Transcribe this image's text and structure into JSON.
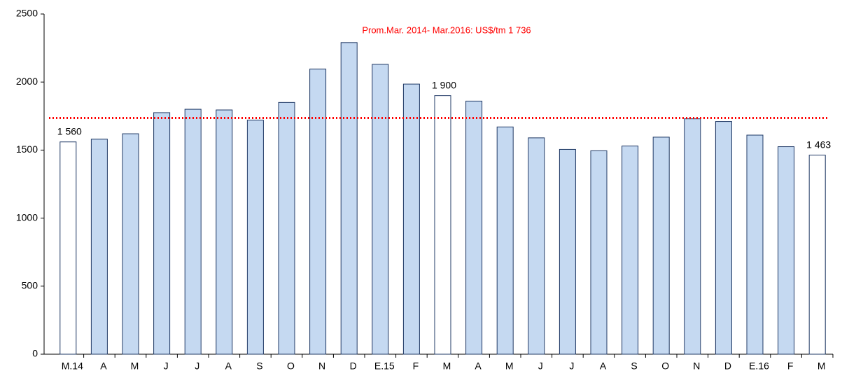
{
  "chart_data": {
    "type": "bar",
    "categories": [
      "M.14",
      "A",
      "M",
      "J",
      "J",
      "A",
      "S",
      "O",
      "N",
      "D",
      "E.15",
      "F",
      "M",
      "A",
      "M",
      "J",
      "J",
      "A",
      "S",
      "O",
      "N",
      "D",
      "E.16",
      "F",
      "M"
    ],
    "values": [
      1560,
      1580,
      1620,
      1775,
      1800,
      1795,
      1720,
      1850,
      2095,
      2290,
      2130,
      1985,
      1900,
      1860,
      1670,
      1590,
      1505,
      1495,
      1530,
      1595,
      1730,
      1710,
      1610,
      1525,
      1463
    ],
    "value_labels": [
      "1 560",
      null,
      null,
      null,
      null,
      null,
      null,
      null,
      null,
      null,
      null,
      null,
      "1 900",
      null,
      null,
      null,
      null,
      null,
      null,
      null,
      null,
      null,
      null,
      null,
      "1 463"
    ],
    "colors": [
      "#ffffff",
      "#c5d9f1",
      "#c5d9f1",
      "#c5d9f1",
      "#c5d9f1",
      "#c5d9f1",
      "#c5d9f1",
      "#c5d9f1",
      "#c5d9f1",
      "#c5d9f1",
      "#c5d9f1",
      "#c5d9f1",
      "#ffffff",
      "#c5d9f1",
      "#c5d9f1",
      "#c5d9f1",
      "#c5d9f1",
      "#c5d9f1",
      "#c5d9f1",
      "#c5d9f1",
      "#c5d9f1",
      "#c5d9f1",
      "#c5d9f1",
      "#c5d9f1",
      "#ffffff"
    ],
    "edge_color": "#1f3864",
    "ylim": [
      0,
      2500
    ],
    "yticks": [
      0,
      500,
      1000,
      1500,
      2000,
      2500
    ],
    "reference": {
      "value": 1736,
      "label": "Prom.Mar. 2014- Mar.2016: US$/tm 1 736",
      "color": "#ff0000"
    }
  }
}
